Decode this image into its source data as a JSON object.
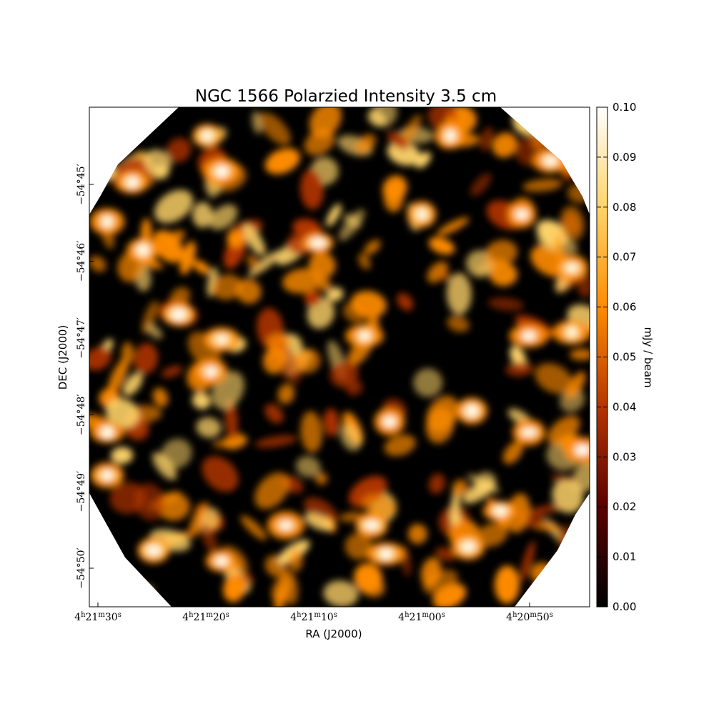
{
  "chart_data": {
    "type": "heatmap",
    "title": "NGC 1566 Polarzied Intensity 3.5 cm",
    "xlabel": "RA (J2000)",
    "ylabel": "DEC (J2000)",
    "x_ticks": [
      "4h21m30s",
      "4h21m20s",
      "4h21m10s",
      "4h21m00s",
      "4h20m50s"
    ],
    "y_ticks": [
      "-54°45′",
      "-54°46′",
      "-54°47′",
      "-54°48′",
      "-54°49′",
      "-54°50′"
    ],
    "colorbar": {
      "label": "mJy / beam",
      "range": [
        0.0,
        0.1
      ],
      "ticks": [
        "0.00",
        "0.01",
        "0.02",
        "0.03",
        "0.04",
        "0.05",
        "0.06",
        "0.07",
        "0.08",
        "0.09",
        "0.10"
      ],
      "colormap": "afmhot",
      "colors": [
        "#000000",
        "#5a0000",
        "#b43500",
        "#ff8c00",
        "#ffd46a",
        "#ffffff"
      ]
    },
    "grid": false,
    "legend": "none",
    "background": "#000000"
  }
}
